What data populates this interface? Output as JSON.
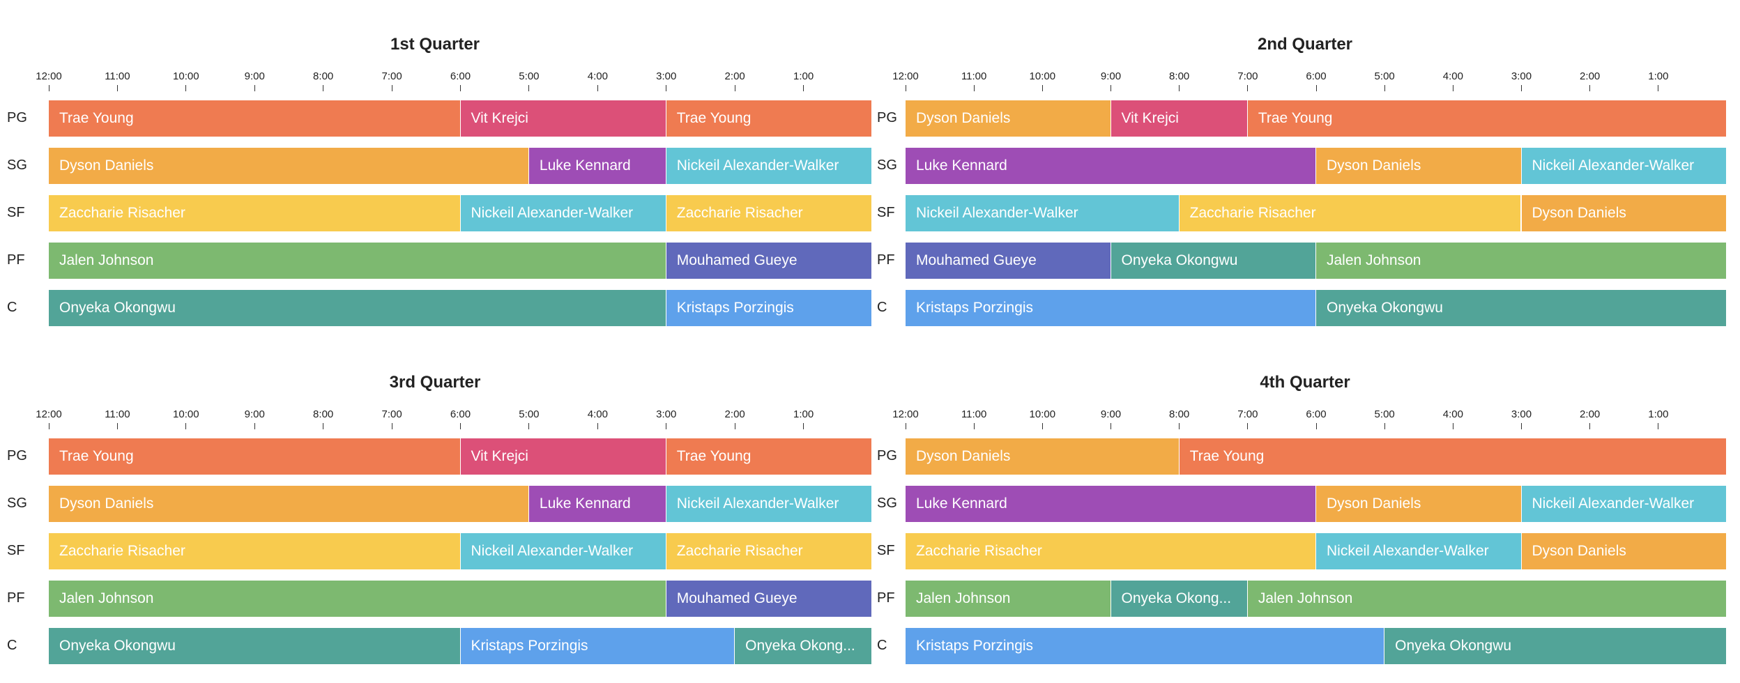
{
  "chart_data": {
    "type": "gantt",
    "xaxis_ticks": [
      "12:00",
      "11:00",
      "10:00",
      "9:00",
      "8:00",
      "7:00",
      "6:00",
      "5:00",
      "4:00",
      "3:00",
      "2:00",
      "1:00"
    ],
    "xlim": [
      12,
      0
    ],
    "positions": [
      "PG",
      "SG",
      "SF",
      "PF",
      "C"
    ],
    "player_colors": {
      "Trae Young": "#ef7b51",
      "Vit Krejci": "#dc5078",
      "Dyson Daniels": "#f2ab47",
      "Luke Kennard": "#9e4db5",
      "Nickeil Alexander-Walker": "#62c5d6",
      "Zaccharie Risacher": "#f8cb4e",
      "Jalen Johnson": "#7db970",
      "Mouhamed Gueye": "#6069bb",
      "Onyeka Okongwu": "#52a498",
      "Kristaps Porzingis": "#5ea1eb"
    },
    "quarters": [
      {
        "title": "1st Quarter",
        "rows": [
          {
            "position": "PG",
            "segments": [
              {
                "player": "Trae Young",
                "start": 12,
                "end": 6,
                "label": "Trae Young"
              },
              {
                "player": "Vit Krejci",
                "start": 6,
                "end": 3,
                "label": "Vit Krejci"
              },
              {
                "player": "Trae Young",
                "start": 3,
                "end": 0,
                "label": "Trae Young"
              }
            ]
          },
          {
            "position": "SG",
            "segments": [
              {
                "player": "Dyson Daniels",
                "start": 12,
                "end": 5,
                "label": "Dyson Daniels"
              },
              {
                "player": "Luke Kennard",
                "start": 5,
                "end": 3,
                "label": "Luke Kennard"
              },
              {
                "player": "Nickeil Alexander-Walker",
                "start": 3,
                "end": 0,
                "label": "Nickeil Alexander-Walker"
              }
            ]
          },
          {
            "position": "SF",
            "segments": [
              {
                "player": "Zaccharie Risacher",
                "start": 12,
                "end": 6,
                "label": "Zaccharie Risacher"
              },
              {
                "player": "Nickeil Alexander-Walker",
                "start": 6,
                "end": 3,
                "label": "Nickeil Alexander-Walker"
              },
              {
                "player": "Zaccharie Risacher",
                "start": 3,
                "end": 0,
                "label": "Zaccharie Risacher"
              }
            ]
          },
          {
            "position": "PF",
            "segments": [
              {
                "player": "Jalen Johnson",
                "start": 12,
                "end": 3,
                "label": "Jalen Johnson"
              },
              {
                "player": "Mouhamed Gueye",
                "start": 3,
                "end": 0,
                "label": "Mouhamed Gueye"
              }
            ]
          },
          {
            "position": "C",
            "segments": [
              {
                "player": "Onyeka Okongwu",
                "start": 12,
                "end": 3,
                "label": "Onyeka Okongwu"
              },
              {
                "player": "Kristaps Porzingis",
                "start": 3,
                "end": 0,
                "label": "Kristaps Porzingis"
              }
            ]
          }
        ]
      },
      {
        "title": "2nd Quarter",
        "rows": [
          {
            "position": "PG",
            "segments": [
              {
                "player": "Dyson Daniels",
                "start": 12,
                "end": 9,
                "label": "Dyson Daniels"
              },
              {
                "player": "Vit Krejci",
                "start": 9,
                "end": 7,
                "label": "Vit Krejci"
              },
              {
                "player": "Trae Young",
                "start": 7,
                "end": 0,
                "label": "Trae Young"
              }
            ]
          },
          {
            "position": "SG",
            "segments": [
              {
                "player": "Luke Kennard",
                "start": 12,
                "end": 6,
                "label": "Luke Kennard"
              },
              {
                "player": "Dyson Daniels",
                "start": 6,
                "end": 3,
                "label": "Dyson Daniels"
              },
              {
                "player": "Nickeil Alexander-Walker",
                "start": 3,
                "end": 0,
                "label": "Nickeil Alexander-Walker"
              }
            ]
          },
          {
            "position": "SF",
            "segments": [
              {
                "player": "Nickeil Alexander-Walker",
                "start": 12,
                "end": 8,
                "label": "Nickeil Alexander-Walker"
              },
              {
                "player": "Zaccharie Risacher",
                "start": 8,
                "end": 3,
                "label": "Zaccharie Risacher"
              },
              {
                "player": "Dyson Daniels",
                "start": 3,
                "end": 0,
                "label": "Dyson Daniels"
              }
            ]
          },
          {
            "position": "PF",
            "segments": [
              {
                "player": "Mouhamed Gueye",
                "start": 12,
                "end": 9,
                "label": "Mouhamed Gueye"
              },
              {
                "player": "Onyeka Okongwu",
                "start": 9,
                "end": 6,
                "label": "Onyeka Okongwu"
              },
              {
                "player": "Jalen Johnson",
                "start": 6,
                "end": 0,
                "label": "Jalen Johnson"
              }
            ]
          },
          {
            "position": "C",
            "segments": [
              {
                "player": "Kristaps Porzingis",
                "start": 12,
                "end": 6,
                "label": "Kristaps Porzingis"
              },
              {
                "player": "Onyeka Okongwu",
                "start": 6,
                "end": 0,
                "label": "Onyeka Okongwu"
              }
            ]
          }
        ]
      },
      {
        "title": "3rd Quarter",
        "rows": [
          {
            "position": "PG",
            "segments": [
              {
                "player": "Trae Young",
                "start": 12,
                "end": 6,
                "label": "Trae Young"
              },
              {
                "player": "Vit Krejci",
                "start": 6,
                "end": 3,
                "label": "Vit Krejci"
              },
              {
                "player": "Trae Young",
                "start": 3,
                "end": 0,
                "label": "Trae Young"
              }
            ]
          },
          {
            "position": "SG",
            "segments": [
              {
                "player": "Dyson Daniels",
                "start": 12,
                "end": 5,
                "label": "Dyson Daniels"
              },
              {
                "player": "Luke Kennard",
                "start": 5,
                "end": 3,
                "label": "Luke Kennard"
              },
              {
                "player": "Nickeil Alexander-Walker",
                "start": 3,
                "end": 0,
                "label": "Nickeil Alexander-Walker"
              }
            ]
          },
          {
            "position": "SF",
            "segments": [
              {
                "player": "Zaccharie Risacher",
                "start": 12,
                "end": 6,
                "label": "Zaccharie Risacher"
              },
              {
                "player": "Nickeil Alexander-Walker",
                "start": 6,
                "end": 3,
                "label": "Nickeil Alexander-Walker"
              },
              {
                "player": "Zaccharie Risacher",
                "start": 3,
                "end": 0,
                "label": "Zaccharie Risacher"
              }
            ]
          },
          {
            "position": "PF",
            "segments": [
              {
                "player": "Jalen Johnson",
                "start": 12,
                "end": 3,
                "label": "Jalen Johnson"
              },
              {
                "player": "Mouhamed Gueye",
                "start": 3,
                "end": 0,
                "label": "Mouhamed Gueye"
              }
            ]
          },
          {
            "position": "C",
            "segments": [
              {
                "player": "Onyeka Okongwu",
                "start": 12,
                "end": 6,
                "label": "Onyeka Okongwu"
              },
              {
                "player": "Kristaps Porzingis",
                "start": 6,
                "end": 2,
                "label": "Kristaps Porzingis"
              },
              {
                "player": "Onyeka Okongwu",
                "start": 2,
                "end": 0,
                "label": "Onyeka Okong..."
              }
            ]
          }
        ]
      },
      {
        "title": "4th Quarter",
        "rows": [
          {
            "position": "PG",
            "segments": [
              {
                "player": "Dyson Daniels",
                "start": 12,
                "end": 8,
                "label": "Dyson Daniels"
              },
              {
                "player": "Trae Young",
                "start": 8,
                "end": 0,
                "label": "Trae Young"
              }
            ]
          },
          {
            "position": "SG",
            "segments": [
              {
                "player": "Luke Kennard",
                "start": 12,
                "end": 6,
                "label": "Luke Kennard"
              },
              {
                "player": "Dyson Daniels",
                "start": 6,
                "end": 3,
                "label": "Dyson Daniels"
              },
              {
                "player": "Nickeil Alexander-Walker",
                "start": 3,
                "end": 0,
                "label": "Nickeil Alexander-Walker"
              }
            ]
          },
          {
            "position": "SF",
            "segments": [
              {
                "player": "Zaccharie Risacher",
                "start": 12,
                "end": 6,
                "label": "Zaccharie Risacher"
              },
              {
                "player": "Nickeil Alexander-Walker",
                "start": 6,
                "end": 3,
                "label": "Nickeil Alexander-Walker"
              },
              {
                "player": "Dyson Daniels",
                "start": 3,
                "end": 0,
                "label": "Dyson Daniels"
              }
            ]
          },
          {
            "position": "PF",
            "segments": [
              {
                "player": "Jalen Johnson",
                "start": 12,
                "end": 9,
                "label": "Jalen Johnson"
              },
              {
                "player": "Onyeka Okongwu",
                "start": 9,
                "end": 7,
                "label": "Onyeka Okong..."
              },
              {
                "player": "Jalen Johnson",
                "start": 7,
                "end": 0,
                "label": "Jalen Johnson"
              }
            ]
          },
          {
            "position": "C",
            "segments": [
              {
                "player": "Kristaps Porzingis",
                "start": 12,
                "end": 5,
                "label": "Kristaps Porzingis"
              },
              {
                "player": "Onyeka Okongwu",
                "start": 5,
                "end": 0,
                "label": "Onyeka Okongwu"
              }
            ]
          }
        ]
      }
    ]
  }
}
